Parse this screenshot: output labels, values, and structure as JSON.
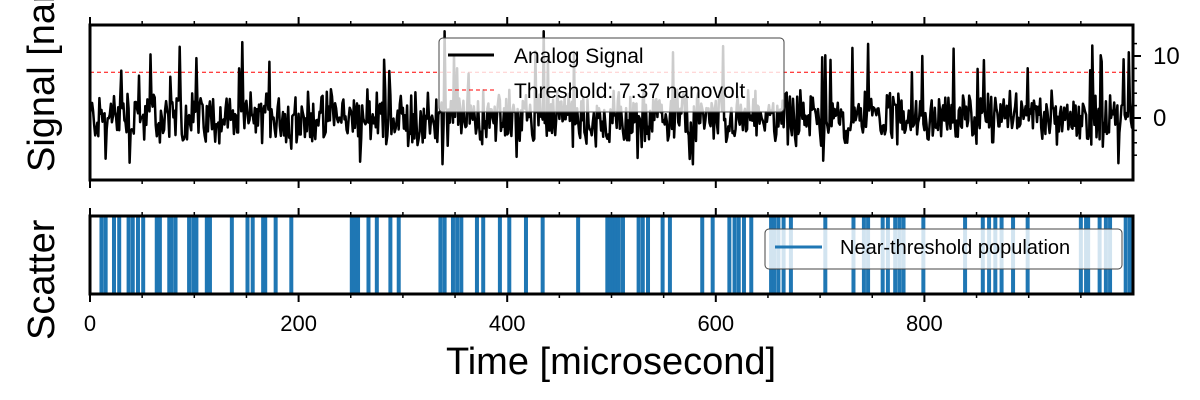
{
  "chart_data": [
    {
      "type": "line",
      "ylabel": "Signal [nanovolt]",
      "yticks": [
        0,
        10
      ],
      "ylim": [
        -10,
        15
      ],
      "grid": false,
      "legend_placement": "top-center",
      "series": [
        {
          "name": "Analog Signal",
          "color": "#000000",
          "x_range": [
            0,
            1000
          ],
          "y_range": [
            -8,
            14
          ]
        }
      ],
      "threshold": {
        "label": "Threshold: 7.37 nanovolt",
        "value": 7.37,
        "color": "#ff0000"
      }
    },
    {
      "type": "event",
      "ylabel": "Scatter",
      "xlabel": "Time [microsecond]",
      "xticks": [
        0,
        200,
        400,
        600,
        800
      ],
      "xlim": [
        0,
        1000
      ],
      "legend_placement": "right",
      "series": [
        {
          "name": "Near-threshold population",
          "color": "#1f77b4",
          "events": [
            11,
            15,
            23,
            28,
            37,
            41,
            46,
            51,
            64,
            67,
            76,
            78,
            82,
            95,
            99,
            102,
            112,
            115,
            136,
            151,
            156,
            166,
            168,
            178,
            193,
            251,
            254,
            257,
            267,
            275,
            288,
            296,
            336,
            340,
            348,
            352,
            356,
            371,
            377,
            393,
            402,
            418,
            434,
            468,
            496,
            499,
            502,
            504,
            507,
            511,
            526,
            530,
            535,
            549,
            556,
            587,
            597,
            613,
            618,
            622,
            627,
            634,
            653,
            656,
            660,
            665,
            672,
            705,
            732,
            742,
            746,
            760,
            765,
            772,
            776,
            780,
            799,
            839,
            856,
            862,
            868,
            874,
            885,
            899,
            950,
            955,
            957,
            968,
            974,
            978,
            993,
            997
          ]
        }
      ]
    }
  ]
}
